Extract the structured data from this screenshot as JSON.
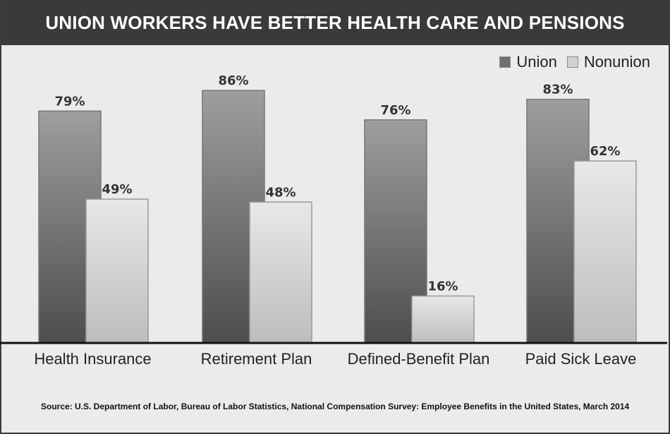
{
  "chart_data": {
    "type": "bar",
    "title": "UNION WORKERS HAVE BETTER HEALTH CARE AND PENSIONS",
    "categories": [
      "Health Insurance",
      "Retirement Plan",
      "Defined-Benefit Plan",
      "Paid Sick Leave"
    ],
    "series": [
      {
        "name": "Union",
        "values": [
          79,
          86,
          76,
          83
        ],
        "color": "#707070"
      },
      {
        "name": "Nonunion",
        "values": [
          49,
          48,
          16,
          62
        ],
        "color": "#d2d2d2"
      }
    ],
    "value_labels": {
      "Union": [
        "79%",
        "86%",
        "76%",
        "83%"
      ],
      "Nonunion": [
        "49%",
        "48%",
        "16%",
        "62%"
      ]
    },
    "xlabel": "",
    "ylabel": "",
    "ylim": [
      0,
      100
    ],
    "grid": false,
    "legend_position": "top-right"
  },
  "legend": {
    "union_label": "Union",
    "nonunion_label": "Nonunion"
  },
  "source": "Source: U.S. Department of Labor, Bureau of Labor Statistics, National Compensation Survey: Employee Benefits in the United States, March 2014"
}
